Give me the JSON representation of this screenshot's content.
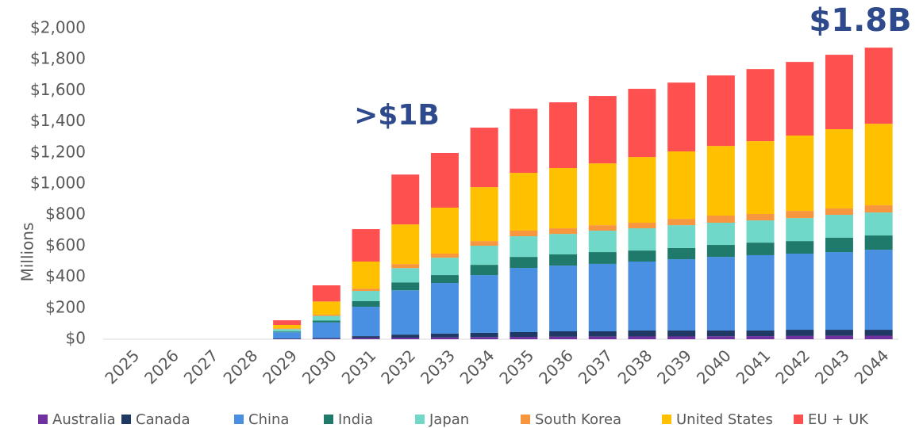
{
  "chart_data": {
    "type": "bar",
    "stacked": true,
    "ylabel": "Millions",
    "annotations": [
      ">$1B",
      "$1.8B"
    ],
    "categories": [
      "2025",
      "2026",
      "2027",
      "2028",
      "2029",
      "2030",
      "2031",
      "2032",
      "2033",
      "2034",
      "2035",
      "2036",
      "2037",
      "2038",
      "2039",
      "2040",
      "2041",
      "2042",
      "2043",
      "2044"
    ],
    "series": [
      {
        "name": "Australia",
        "color": "#7030a0",
        "values": [
          0,
          0,
          0,
          0,
          2,
          3,
          8,
          10,
          12,
          14,
          15,
          16,
          17,
          18,
          18,
          19,
          20,
          21,
          22,
          23
        ]
      },
      {
        "name": "Canada",
        "color": "#203864",
        "values": [
          0,
          0,
          0,
          0,
          3,
          5,
          12,
          20,
          24,
          27,
          31,
          35,
          34,
          38,
          38,
          37,
          36,
          40,
          39,
          38
        ]
      },
      {
        "name": "China",
        "color": "#4a90e2",
        "values": [
          0,
          0,
          0,
          0,
          40,
          100,
          189,
          285,
          326,
          372,
          413,
          423,
          434,
          444,
          459,
          474,
          485,
          490,
          500,
          515
        ]
      },
      {
        "name": "India",
        "color": "#1f7a6b",
        "values": [
          0,
          0,
          0,
          0,
          5,
          12,
          36,
          51,
          51,
          66,
          71,
          72,
          76,
          71,
          72,
          77,
          81,
          81,
          92,
          92
        ]
      },
      {
        "name": "Japan",
        "color": "#6fd8c8",
        "values": [
          0,
          0,
          0,
          0,
          15,
          30,
          66,
          92,
          112,
          123,
          133,
          132,
          138,
          143,
          147,
          143,
          143,
          148,
          148,
          148
        ]
      },
      {
        "name": "South Korea",
        "color": "#f7963e",
        "values": [
          0,
          0,
          0,
          0,
          5,
          8,
          15,
          26,
          26,
          30,
          36,
          36,
          35,
          36,
          41,
          46,
          41,
          46,
          41,
          46
        ]
      },
      {
        "name": "United States",
        "color": "#ffc000",
        "values": [
          0,
          0,
          0,
          0,
          22,
          85,
          174,
          255,
          296,
          347,
          372,
          388,
          398,
          423,
          434,
          448,
          469,
          485,
          510,
          525
        ]
      },
      {
        "name": "EU + UK",
        "color": "#ff5050",
        "values": [
          0,
          0,
          0,
          0,
          30,
          104,
          209,
          321,
          352,
          383,
          413,
          423,
          434,
          439,
          443,
          454,
          464,
          474,
          479,
          490
        ]
      }
    ],
    "ylim": [
      0,
      2000
    ],
    "yticks": [
      {
        "value": 0,
        "label": "$0"
      },
      {
        "value": 200,
        "label": "$200"
      },
      {
        "value": 400,
        "label": "$400"
      },
      {
        "value": 600,
        "label": "$600"
      },
      {
        "value": 800,
        "label": "$800"
      },
      {
        "value": 1000,
        "label": "$1,000"
      },
      {
        "value": 1200,
        "label": "$1,200"
      },
      {
        "value": 1400,
        "label": "$1,400"
      },
      {
        "value": 1600,
        "label": "$1,600"
      },
      {
        "value": 1800,
        "label": "$1,800"
      },
      {
        "value": 2000,
        "label": "$2,000"
      }
    ],
    "grid": false,
    "legend": "bottom"
  }
}
